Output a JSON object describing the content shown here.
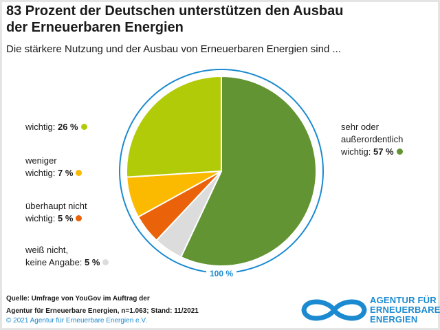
{
  "title_line1": "83 Prozent der Deutschen unterstützen den Ausbau",
  "title_line2": "der Erneuerbaren Energien",
  "subtitle": "Die stärkere Nutzung und der Ausbau von Erneuerbaren Energien sind ...",
  "chart_data": {
    "type": "pie",
    "total_label": "100 %",
    "slices": [
      {
        "label_line1": "sehr oder",
        "label_line2": "außerordentlich",
        "label_line3": "wichtig:",
        "value": 57,
        "value_label": "57 %",
        "color": "#629433"
      },
      {
        "label_line1": "weiß nicht,",
        "label_line2": "keine Angabe:",
        "value": 5,
        "value_label": "5 %",
        "color": "#dcdcdc"
      },
      {
        "label_line1": "überhaupt nicht",
        "label_line2": "wichtig:",
        "value": 5,
        "value_label": "5 %",
        "color": "#ea6209"
      },
      {
        "label_line1": "weniger",
        "label_line2": "wichtig:",
        "value": 7,
        "value_label": "7 %",
        "color": "#fbb900"
      },
      {
        "label_line1": "wichtig:",
        "value": 26,
        "value_label": "26 %",
        "color": "#b2cb09"
      }
    ]
  },
  "source_line1": "Quelle: Umfrage von YouGov im Auftrag der",
  "source_line2": "Agentur für Erneuerbare Energien, n=1.063; Stand: 11/2021",
  "copyright": "© 2021 Agentur für Erneuerbare Energien e.V.",
  "logo": {
    "line1": "AGENTUR FÜR",
    "line2": "ERNEUERBARE",
    "line3": "ENERGIEN",
    "color": "#1b8ad0",
    "icon": "infinity-icon"
  }
}
